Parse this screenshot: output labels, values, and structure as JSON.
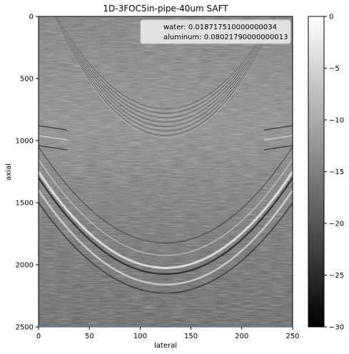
{
  "chart_data": {
    "type": "heatmap",
    "title": "1D-3FOC5in-pipe-40um SAFT",
    "xlabel": "lateral",
    "ylabel": "axial",
    "xlim": [
      0,
      250
    ],
    "ylim": [
      2500,
      0
    ],
    "x_ticks": [
      "0",
      "50",
      "100",
      "150",
      "200",
      "250"
    ],
    "y_ticks": [
      "0",
      "500",
      "1000",
      "1500",
      "2000",
      "2500"
    ],
    "colorbar": {
      "colormap": "gray",
      "range": [
        -30,
        0
      ],
      "ticks": [
        "0",
        "−5",
        "−10",
        "−15",
        "−20",
        "−25",
        "−30"
      ]
    },
    "legend": {
      "placement": "top-right",
      "entries": [
        "water: 0.018717510000000034",
        "aluminum: 0.08021790000000013"
      ]
    },
    "grid": false
  }
}
